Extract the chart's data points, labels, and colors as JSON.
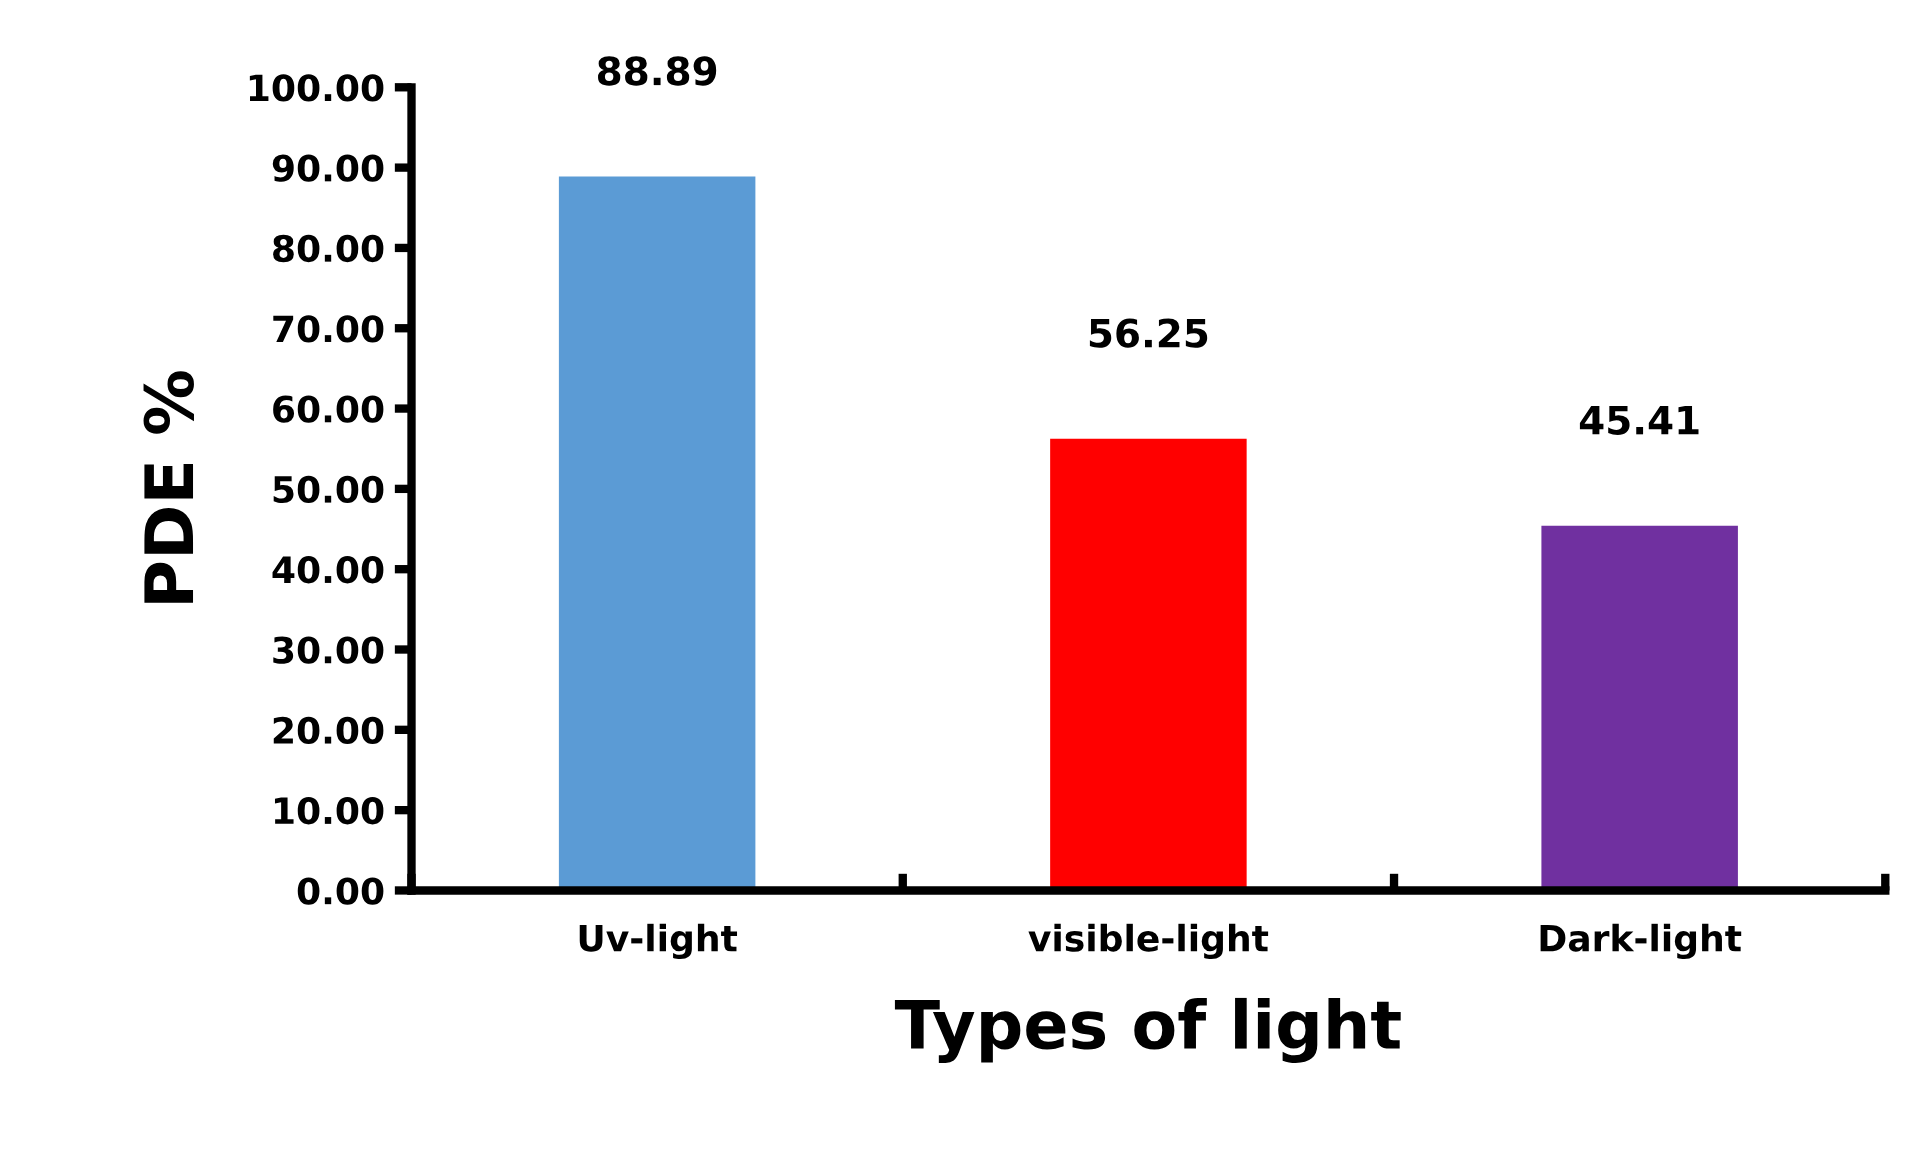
{
  "chart_data": {
    "type": "bar",
    "xlabel": "Types of light",
    "ylabel": "PDE %",
    "categories": [
      "Uv-light",
      "visible-light",
      "Dark-light"
    ],
    "values": [
      88.89,
      56.25,
      45.41
    ],
    "colors": [
      "#5b9bd5",
      "#ff0000",
      "#7030a0"
    ],
    "value_labels": [
      "88.89",
      "56.25",
      "45.41"
    ],
    "ylim": [
      0,
      100
    ],
    "yticks": [
      {
        "value": 0,
        "label": "0.00"
      },
      {
        "value": 10,
        "label": "10.00"
      },
      {
        "value": 20,
        "label": "20.00"
      },
      {
        "value": 30,
        "label": "30.00"
      },
      {
        "value": 40,
        "label": "40.00"
      },
      {
        "value": 50,
        "label": "50.00"
      },
      {
        "value": 60,
        "label": "60.00"
      },
      {
        "value": 70,
        "label": "70.00"
      },
      {
        "value": 80,
        "label": "80.00"
      },
      {
        "value": 90,
        "label": "90.00"
      },
      {
        "value": 100,
        "label": "100.00"
      }
    ],
    "grid": false,
    "legend": false
  }
}
